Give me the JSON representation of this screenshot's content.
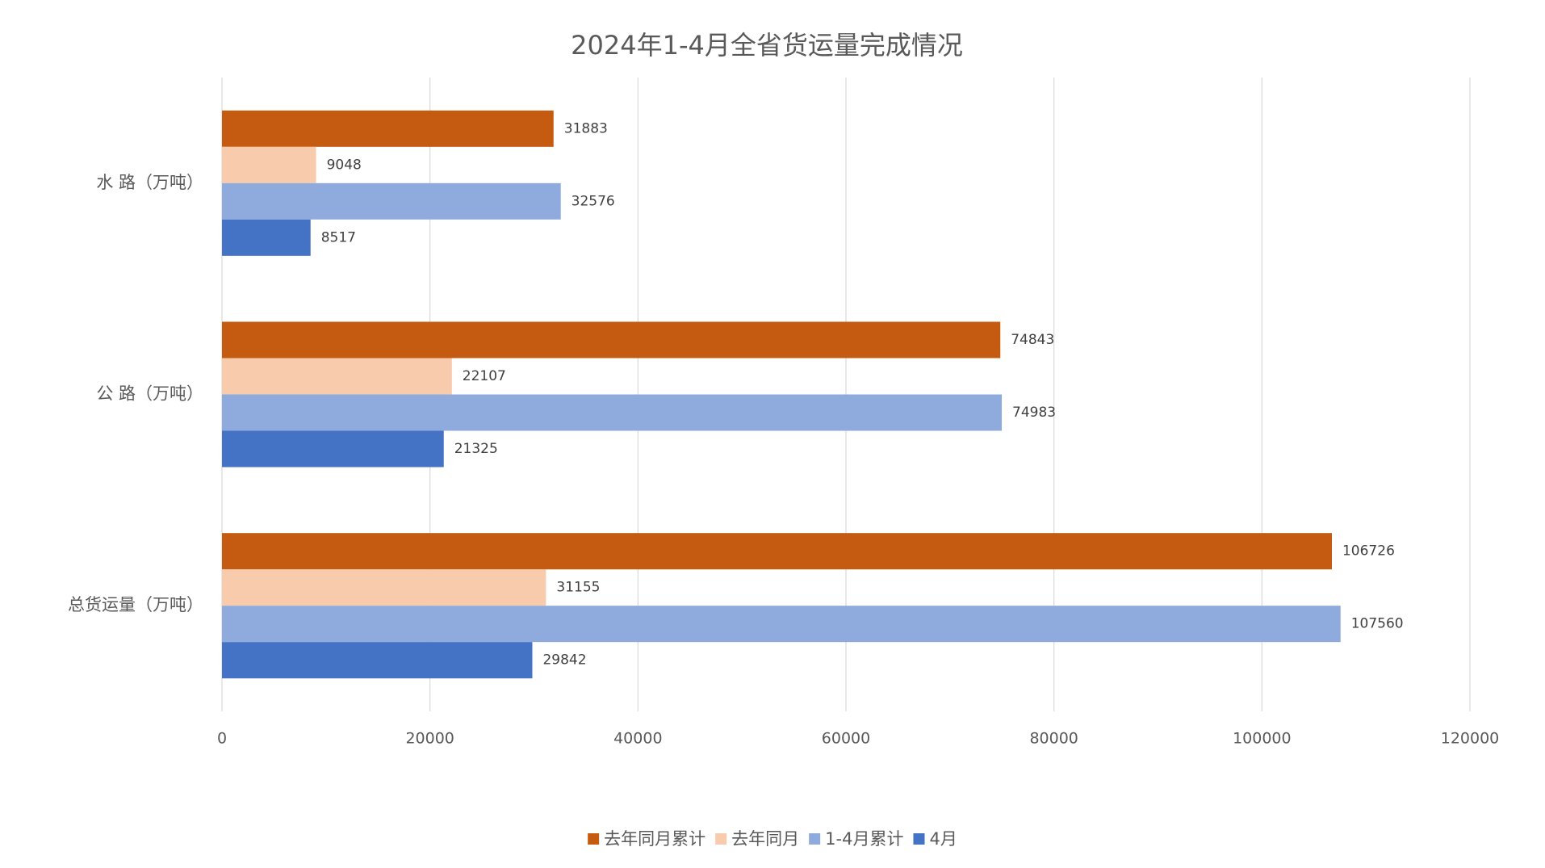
{
  "chart_data": {
    "type": "hbar",
    "title": "2024年1-4月全省货运量完成情况",
    "categories": [
      "水 路（万吨）",
      "公 路（万吨）",
      "总货运量（万吨）"
    ],
    "series": [
      {
        "name": "去年同月累计",
        "color": "#c55a11",
        "values": [
          31883,
          74843,
          106726
        ]
      },
      {
        "name": "去年同月",
        "color": "#f8cbad",
        "values": [
          9048,
          22107,
          31155
        ]
      },
      {
        "name": "1-4月累计",
        "color": "#8faadc",
        "values": [
          32576,
          74983,
          107560
        ]
      },
      {
        "name": "4月",
        "color": "#4472c4",
        "values": [
          8517,
          21325,
          29842
        ]
      }
    ],
    "xlim": [
      0,
      120000
    ],
    "xticks": [
      0,
      20000,
      40000,
      60000,
      80000,
      100000,
      120000
    ],
    "grid": true,
    "legend": "bottom"
  }
}
